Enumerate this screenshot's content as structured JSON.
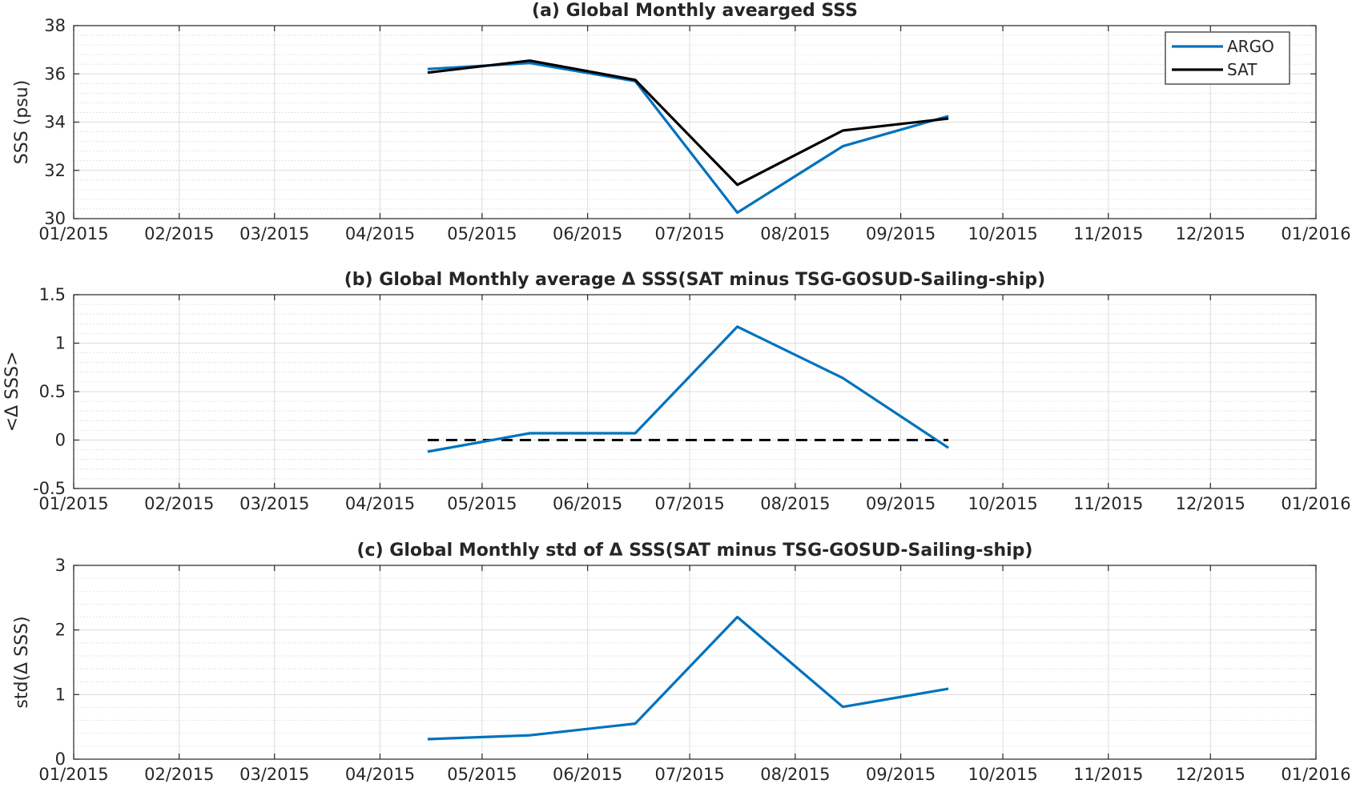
{
  "chart_data": [
    {
      "type": "line",
      "title": "(a) Global Monthly avearged SSS",
      "ylabel": "SSS (psu)",
      "ylim": [
        30,
        38
      ],
      "yticks": [
        "30",
        "32",
        "34",
        "36",
        "38"
      ],
      "xlim": [
        "2015-01-01",
        "2016-01-01"
      ],
      "xticks": [
        "01/2015",
        "02/2015",
        "03/2015",
        "04/2015",
        "05/2015",
        "06/2015",
        "07/2015",
        "08/2015",
        "09/2015",
        "10/2015",
        "11/2015",
        "12/2015",
        "01/2016"
      ],
      "grid": true,
      "minor_grid": true,
      "legend_position": "top-right",
      "x": [
        "2015-04-15",
        "2015-05-15",
        "2015-06-15",
        "2015-07-15",
        "2015-08-15",
        "2015-09-15"
      ],
      "series": [
        {
          "name": "ARGO",
          "color": "#0072BD",
          "style": "solid",
          "values": [
            36.2,
            36.45,
            35.7,
            30.25,
            33.0,
            34.25
          ]
        },
        {
          "name": "SAT",
          "color": "#000000",
          "style": "solid",
          "values": [
            36.05,
            36.55,
            35.75,
            31.4,
            33.65,
            34.15
          ]
        }
      ]
    },
    {
      "type": "line",
      "title": "(b) Global Monthly average Δ SSS(SAT minus TSG-GOSUD-Sailing-ship)",
      "ylabel": "<Δ SSS>",
      "ylim": [
        -0.5,
        1.5
      ],
      "yticks": [
        "-0.5",
        "0",
        "0.5",
        "1",
        "1.5"
      ],
      "xlim": [
        "2015-01-01",
        "2016-01-01"
      ],
      "xticks": [
        "01/2015",
        "02/2015",
        "03/2015",
        "04/2015",
        "05/2015",
        "06/2015",
        "07/2015",
        "08/2015",
        "09/2015",
        "10/2015",
        "11/2015",
        "12/2015",
        "01/2016"
      ],
      "grid": true,
      "minor_grid": true,
      "x": [
        "2015-04-15",
        "2015-05-15",
        "2015-06-15",
        "2015-07-15",
        "2015-08-15",
        "2015-09-15"
      ],
      "series": [
        {
          "color": "#0072BD",
          "style": "solid",
          "values": [
            -0.12,
            0.07,
            0.07,
            1.17,
            0.64,
            -0.08
          ]
        }
      ],
      "reference_line": {
        "y": 0,
        "x_from": "2015-04-15",
        "x_to": "2015-09-15",
        "color": "#000000",
        "style": "dashed"
      }
    },
    {
      "type": "line",
      "title": "(c) Global Monthly std of Δ SSS(SAT minus TSG-GOSUD-Sailing-ship)",
      "ylabel": "std(Δ SSS)",
      "ylim": [
        0,
        3
      ],
      "yticks": [
        "0",
        "1",
        "2",
        "3"
      ],
      "xlim": [
        "2015-01-01",
        "2016-01-01"
      ],
      "xticks": [
        "01/2015",
        "02/2015",
        "03/2015",
        "04/2015",
        "05/2015",
        "06/2015",
        "07/2015",
        "08/2015",
        "09/2015",
        "10/2015",
        "11/2015",
        "12/2015",
        "01/2016"
      ],
      "grid": true,
      "minor_grid": true,
      "x": [
        "2015-04-15",
        "2015-05-15",
        "2015-06-15",
        "2015-07-15",
        "2015-08-15",
        "2015-09-15"
      ],
      "series": [
        {
          "color": "#0072BD",
          "style": "solid",
          "values": [
            0.31,
            0.37,
            0.55,
            2.2,
            0.81,
            1.09
          ]
        }
      ]
    }
  ]
}
